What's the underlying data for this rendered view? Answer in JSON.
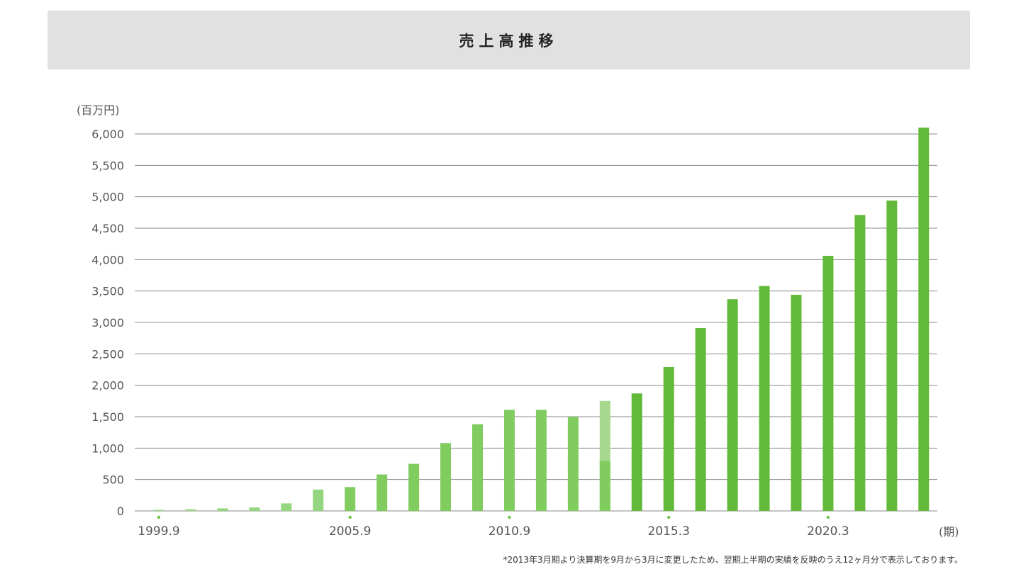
{
  "header": {
    "title": "売上高推移"
  },
  "footnote": "*2013年3月期より決算期を9月から3月に変更したため、翌期上半期の実績を反映のうえ12ヶ月分で表示しております。",
  "colors": {
    "bar_early": "#93d67f",
    "bar_mid": "#80cc5e",
    "bar_late": "#62b93a",
    "bar_adjusted": "#a6d98e",
    "grid": "#8a8a8a",
    "tick_dot": "#6cc24a"
  },
  "chart_data": {
    "type": "bar",
    "ylabel": "(百万円)",
    "xlabel": "(期)",
    "ylim": [
      0,
      6000
    ],
    "yticks": [
      "0",
      "500",
      "1,000",
      "1,500",
      "2,000",
      "2,500",
      "3,000",
      "3,500",
      "4,000",
      "4,500",
      "5,000",
      "5,500",
      "6,000"
    ],
    "ytick_values": [
      0,
      500,
      1000,
      1500,
      2000,
      2500,
      3000,
      3500,
      4000,
      4500,
      5000,
      5500,
      6000
    ],
    "xtick_labels": [
      {
        "index": 0,
        "label": "1999.9"
      },
      {
        "index": 6,
        "label": "2005.9"
      },
      {
        "index": 11,
        "label": "2010.9"
      },
      {
        "index": 16,
        "label": "2015.3"
      },
      {
        "index": 21,
        "label": "2020.3"
      }
    ],
    "grid": true,
    "values": [
      5,
      25,
      40,
      55,
      120,
      340,
      380,
      580,
      750,
      1080,
      1380,
      1610,
      1610,
      1500,
      800,
      1870,
      2290,
      2910,
      3370,
      3580,
      3440,
      4060,
      4710,
      4940,
      6100
    ],
    "adjusted_values": [
      null,
      null,
      null,
      null,
      null,
      null,
      null,
      null,
      null,
      null,
      null,
      null,
      null,
      null,
      1750,
      null,
      null,
      null,
      null,
      null,
      null,
      null,
      null,
      null,
      null
    ]
  }
}
